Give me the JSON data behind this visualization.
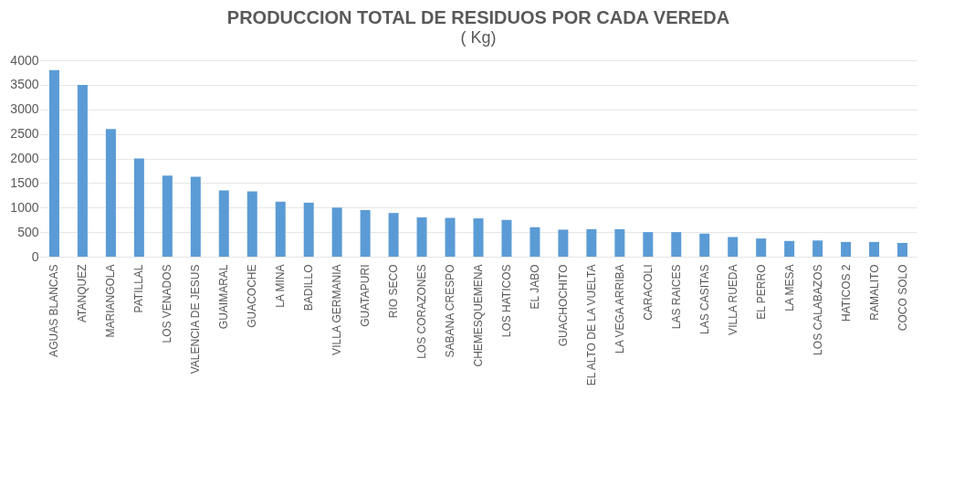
{
  "chart_data": {
    "type": "bar",
    "title": "PRODUCCION TOTAL DE RESIDUOS POR CADA  VEREDA",
    "subtitle": "( Kg)",
    "categories": [
      "AGUAS BLANCAS",
      "ATANQUEZ",
      "MARIANGOLA",
      "PATILLAL",
      "LOS VENADOS",
      "VALENCIA DE JESUS",
      "GUAIMARAL",
      "GUACOCHE",
      "LA MINA",
      "BADILLO",
      "VILLA GERMANIA",
      "GUATAPURI",
      "RIO SECO",
      "LOS CORAZONES",
      "SABANA CRESPO",
      "CHEMESQUEMENA",
      "LOS HATICOS",
      "EL JABO",
      "GUACHOCHITO",
      "EL ALTO DE LA VUELTA",
      "LA VEGA ARRIBA",
      "CARACOLI",
      "LAS RAICES",
      "LAS CASITAS",
      "VILLA RUEDA",
      "EL PERRO",
      "LA MESA",
      "LOS CALABAZOS",
      "HATICOS 2",
      "RAMALITO",
      "COCO SOLO"
    ],
    "values": [
      3800,
      3500,
      2600,
      2000,
      1650,
      1630,
      1350,
      1330,
      1120,
      1100,
      1000,
      950,
      890,
      800,
      790,
      780,
      750,
      600,
      550,
      560,
      560,
      500,
      500,
      470,
      400,
      370,
      320,
      330,
      300,
      300,
      280
    ],
    "color": "#5b9bd5",
    "ylim": [
      0,
      4000
    ],
    "yticks": [
      0,
      500,
      1000,
      1500,
      2000,
      2500,
      3000,
      3500,
      4000
    ],
    "grid": "y"
  }
}
